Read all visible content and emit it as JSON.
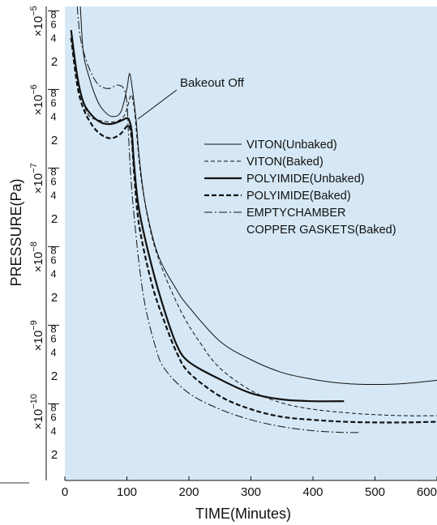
{
  "chart_data": {
    "type": "line",
    "xlabel": "TIME(Minutes)",
    "ylabel": "PRESSURE(Pa)",
    "xlim": [
      0,
      600
    ],
    "ylim": [
      1e-10,
      0.0001
    ],
    "y_scale": "log",
    "x_ticks": [
      "0",
      "100",
      "200",
      "300",
      "400",
      "500",
      "600"
    ],
    "decades": [
      {
        "mult": "×10",
        "exp": "−5",
        "ticks": [
          "8",
          "6",
          "4",
          "2"
        ]
      },
      {
        "mult": "×10",
        "exp": "−6",
        "ticks": [
          "8",
          "6",
          "4",
          "2"
        ]
      },
      {
        "mult": "×10",
        "exp": "−7",
        "ticks": [
          "8",
          "6",
          "4",
          "2"
        ]
      },
      {
        "mult": "×10",
        "exp": "−8",
        "ticks": [
          "8",
          "6",
          "4",
          "2"
        ]
      },
      {
        "mult": "×10",
        "exp": "−9",
        "ticks": [
          "8",
          "6",
          "4",
          "2"
        ]
      },
      {
        "mult": "×10",
        "exp": "−10",
        "ticks": [
          "8",
          "6",
          "4",
          "2"
        ]
      }
    ],
    "annotation": "Bakeout Off",
    "legend": [
      {
        "lines": [
          "VITON(Unbaked)"
        ],
        "series": 0
      },
      {
        "lines": [
          "VITON(Baked)"
        ],
        "series": 1
      },
      {
        "lines": [
          "POLYIMIDE(Unbaked)"
        ],
        "series": 2
      },
      {
        "lines": [
          "POLYIMIDE(Baked)"
        ],
        "series": 3
      },
      {
        "lines": [
          "EMPTYCHAMBER",
          "COPPER GASKETS(Baked)"
        ],
        "series": 4
      }
    ],
    "series": [
      {
        "name": "VITON(Unbaked)",
        "style": "thin",
        "points": [
          [
            25,
            0.0001
          ],
          [
            30,
            2.5e-05
          ],
          [
            40,
            1.2e-05
          ],
          [
            50,
            7e-06
          ],
          [
            60,
            5e-06
          ],
          [
            75,
            4e-06
          ],
          [
            90,
            4.5e-06
          ],
          [
            100,
            9e-06
          ],
          [
            104,
            1.4e-05
          ],
          [
            108,
            1e-05
          ],
          [
            115,
            3.5e-06
          ],
          [
            120,
            1.2e-06
          ],
          [
            130,
            3e-07
          ],
          [
            150,
            7e-08
          ],
          [
            180,
            2.5e-08
          ],
          [
            200,
            1.5e-08
          ],
          [
            250,
            5.5e-09
          ],
          [
            300,
            3.2e-09
          ],
          [
            350,
            2.2e-09
          ],
          [
            400,
            1.8e-09
          ],
          [
            450,
            1.6e-09
          ],
          [
            500,
            1.55e-09
          ],
          [
            550,
            1.6e-09
          ],
          [
            600,
            1.75e-09
          ]
        ]
      },
      {
        "name": "VITON(Baked)",
        "style": "dashed",
        "points": [
          [
            10,
            4e-05
          ],
          [
            20,
            1.3e-05
          ],
          [
            30,
            6e-06
          ],
          [
            40,
            4e-06
          ],
          [
            60,
            3.5e-06
          ],
          [
            80,
            3.4e-06
          ],
          [
            95,
            4e-06
          ],
          [
            103,
            6e-06
          ],
          [
            107,
            7.5e-06
          ],
          [
            112,
            5e-06
          ],
          [
            118,
            1.5e-06
          ],
          [
            125,
            5e-07
          ],
          [
            140,
            1.2e-07
          ],
          [
            160,
            4e-08
          ],
          [
            190,
            1.2e-08
          ],
          [
            220,
            5e-09
          ],
          [
            250,
            2.5e-09
          ],
          [
            300,
            1.3e-09
          ],
          [
            350,
            9e-10
          ],
          [
            400,
            7.5e-10
          ],
          [
            450,
            6.8e-10
          ],
          [
            500,
            6.4e-10
          ],
          [
            550,
            6.2e-10
          ],
          [
            600,
            6.2e-10
          ]
        ]
      },
      {
        "name": "POLYIMIDE(Unbaked)",
        "style": "thick",
        "points": [
          [
            10,
            5e-05
          ],
          [
            20,
            1.3e-05
          ],
          [
            30,
            6e-06
          ],
          [
            45,
            4e-06
          ],
          [
            60,
            3.3e-06
          ],
          [
            75,
            3.2e-06
          ],
          [
            90,
            3.5e-06
          ],
          [
            100,
            3.8e-06
          ],
          [
            104,
            3.5e-06
          ],
          [
            108,
            2.5e-06
          ],
          [
            112,
            9e-07
          ],
          [
            120,
            2.5e-07
          ],
          [
            140,
            5e-08
          ],
          [
            160,
            1.4e-08
          ],
          [
            180,
            5e-09
          ],
          [
            200,
            3e-09
          ],
          [
            250,
            1.8e-09
          ],
          [
            300,
            1.2e-09
          ],
          [
            350,
            1e-09
          ],
          [
            400,
            9.5e-10
          ],
          [
            450,
            9.5e-10
          ]
        ]
      },
      {
        "name": "POLYIMIDE(Baked)",
        "style": "dashed-thick",
        "points": [
          [
            10,
            4e-05
          ],
          [
            20,
            1e-05
          ],
          [
            30,
            5e-06
          ],
          [
            45,
            3e-06
          ],
          [
            60,
            2.3e-06
          ],
          [
            75,
            2.1e-06
          ],
          [
            90,
            2.4e-06
          ],
          [
            100,
            3e-06
          ],
          [
            104,
            3e-06
          ],
          [
            108,
            2e-06
          ],
          [
            112,
            7e-07
          ],
          [
            120,
            1.6e-07
          ],
          [
            140,
            3e-08
          ],
          [
            160,
            1e-08
          ],
          [
            180,
            4e-09
          ],
          [
            200,
            2.2e-09
          ],
          [
            250,
            1.1e-09
          ],
          [
            300,
            7.5e-10
          ],
          [
            350,
            6e-10
          ],
          [
            400,
            5.5e-10
          ],
          [
            450,
            5.2e-10
          ],
          [
            500,
            5.1e-10
          ],
          [
            550,
            5.1e-10
          ],
          [
            600,
            5.2e-10
          ]
        ]
      },
      {
        "name": "EMPTYCHAMBER COPPER GASKETS(Baked)",
        "style": "dashdot",
        "points": [
          [
            20,
            0.0001
          ],
          [
            25,
            4e-05
          ],
          [
            35,
            2e-05
          ],
          [
            45,
            1.3e-05
          ],
          [
            55,
            1e-05
          ],
          [
            70,
            9e-06
          ],
          [
            85,
            1e-05
          ],
          [
            95,
            9e-06
          ],
          [
            100,
            6e-06
          ],
          [
            102,
            3e-06
          ],
          [
            105,
            1e-06
          ],
          [
            110,
            3e-07
          ],
          [
            120,
            5e-08
          ],
          [
            130,
            1.5e-08
          ],
          [
            145,
            5e-09
          ],
          [
            160,
            2.5e-09
          ],
          [
            200,
            1.2e-09
          ],
          [
            250,
            7.5e-10
          ],
          [
            300,
            5.5e-10
          ],
          [
            350,
            4.5e-10
          ],
          [
            400,
            4e-10
          ],
          [
            450,
            3.8e-10
          ],
          [
            475,
            3.8e-10
          ]
        ]
      }
    ]
  }
}
